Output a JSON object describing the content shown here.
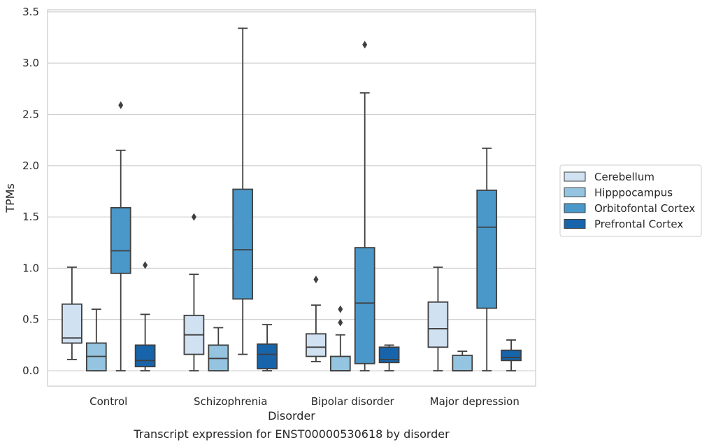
{
  "chart_data": {
    "type": "box",
    "caption": "Transcript expression for ENST00000530618 by disorder",
    "xlabel": "Disorder",
    "ylabel": "TPMs",
    "categories": [
      "Control",
      "Schizophrenia",
      "Bipolar disorder",
      "Major depression"
    ],
    "ylim": [
      -0.15,
      3.52
    ],
    "yticks": [
      0.0,
      0.5,
      1.0,
      1.5,
      2.0,
      2.5,
      3.0,
      3.5
    ],
    "ytick_labels": [
      "0.0",
      "0.5",
      "1.0",
      "1.5",
      "2.0",
      "2.5",
      "3.0",
      "3.5"
    ],
    "grid": "horizontal",
    "legend_position": "right",
    "series": [
      {
        "name": "Cerebellum",
        "color": "#d0e1f2",
        "boxes": [
          {
            "whisker_low": 0.11,
            "q1": 0.27,
            "median": 0.32,
            "q3": 0.65,
            "whisker_high": 1.01,
            "outliers": []
          },
          {
            "whisker_low": 0.0,
            "q1": 0.16,
            "median": 0.35,
            "q3": 0.54,
            "whisker_high": 0.94,
            "outliers": [
              1.5
            ]
          },
          {
            "whisker_low": 0.09,
            "q1": 0.14,
            "median": 0.23,
            "q3": 0.36,
            "whisker_high": 0.64,
            "outliers": [
              0.89
            ]
          },
          {
            "whisker_low": 0.0,
            "q1": 0.23,
            "median": 0.41,
            "q3": 0.67,
            "whisker_high": 1.01,
            "outliers": []
          }
        ]
      },
      {
        "name": "Hipppocampus",
        "color": "#94c4df",
        "boxes": [
          {
            "whisker_low": 0.0,
            "q1": 0.0,
            "median": 0.14,
            "q3": 0.27,
            "whisker_high": 0.6,
            "outliers": []
          },
          {
            "whisker_low": 0.0,
            "q1": 0.0,
            "median": 0.12,
            "q3": 0.25,
            "whisker_high": 0.42,
            "outliers": []
          },
          {
            "whisker_low": 0.0,
            "q1": 0.0,
            "median": 0.0,
            "q3": 0.14,
            "whisker_high": 0.35,
            "outliers": [
              0.47,
              0.6
            ]
          },
          {
            "whisker_low": 0.0,
            "q1": 0.0,
            "median": 0.0,
            "q3": 0.15,
            "whisker_high": 0.19,
            "outliers": []
          }
        ]
      },
      {
        "name": "Orbitofontal Cortex",
        "color": "#4a98c9",
        "boxes": [
          {
            "whisker_low": 0.0,
            "q1": 0.95,
            "median": 1.17,
            "q3": 1.59,
            "whisker_high": 2.15,
            "outliers": [
              2.59
            ]
          },
          {
            "whisker_low": 0.16,
            "q1": 0.7,
            "median": 1.18,
            "q3": 1.77,
            "whisker_high": 3.34,
            "outliers": []
          },
          {
            "whisker_low": 0.0,
            "q1": 0.07,
            "median": 0.66,
            "q3": 1.2,
            "whisker_high": 2.71,
            "outliers": [
              3.18
            ]
          },
          {
            "whisker_low": 0.0,
            "q1": 0.61,
            "median": 1.4,
            "q3": 1.76,
            "whisker_high": 2.17,
            "outliers": []
          }
        ]
      },
      {
        "name": "Prefrontal Cortex",
        "color": "#1764ab",
        "boxes": [
          {
            "whisker_low": 0.0,
            "q1": 0.04,
            "median": 0.1,
            "q3": 0.25,
            "whisker_high": 0.55,
            "outliers": [
              1.03
            ]
          },
          {
            "whisker_low": 0.0,
            "q1": 0.02,
            "median": 0.16,
            "q3": 0.26,
            "whisker_high": 0.45,
            "outliers": []
          },
          {
            "whisker_low": 0.0,
            "q1": 0.08,
            "median": 0.11,
            "q3": 0.23,
            "whisker_high": 0.25,
            "outliers": []
          },
          {
            "whisker_low": 0.0,
            "q1": 0.1,
            "median": 0.13,
            "q3": 0.2,
            "whisker_high": 0.3,
            "outliers": []
          }
        ]
      }
    ]
  }
}
